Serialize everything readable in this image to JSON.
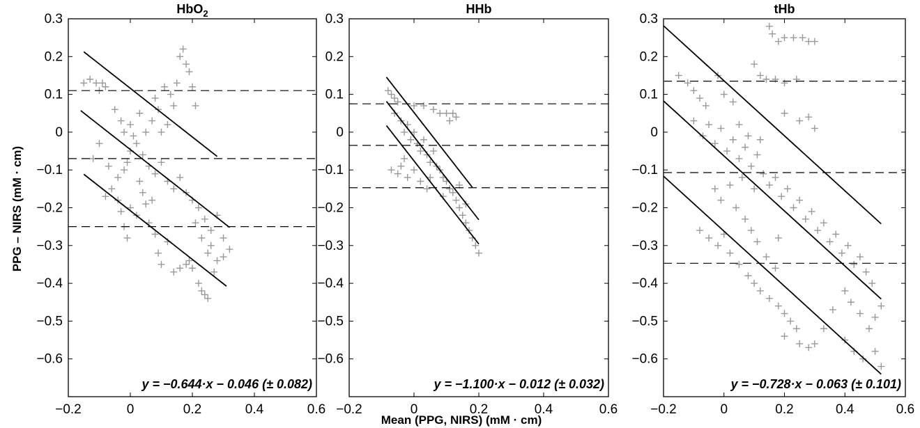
{
  "figure": {
    "ylabel": "PPG – NIRS (mM · cm)",
    "xlabel": "Mean (PPG, NIRS) (mM · cm)"
  },
  "chart_data": [
    {
      "type": "scatter",
      "title": "HbO",
      "title_subscript": "2",
      "xlim": [
        -0.2,
        0.6
      ],
      "ylim": [
        -0.7,
        0.3
      ],
      "x_ticks": [
        -0.2,
        0,
        0.2,
        0.4,
        0.6
      ],
      "x_tick_labels": [
        "−0.2",
        "0",
        "0.2",
        "0.4",
        "0.6"
      ],
      "y_ticks": [
        0.3,
        0.2,
        0.1,
        0,
        -0.1,
        -0.2,
        -0.3,
        -0.4,
        -0.5,
        -0.6
      ],
      "y_tick_labels": [
        "0.3",
        "0.2",
        "0.1",
        "0",
        "−0.1",
        "−0.2",
        "−0.3",
        "−0.4",
        "−0.5",
        "−0.6"
      ],
      "grid": false,
      "marker": "+",
      "marker_color": "#999999",
      "equation": "y = −0.644·x − 0.046 (± 0.082)",
      "dashed_hlines": [
        0.11,
        -0.07,
        -0.25
      ],
      "regression": {
        "slope": -0.644,
        "intercept": -0.046,
        "x_range": [
          -0.16,
          0.32
        ]
      },
      "limit_lines": [
        {
          "slope": -0.644,
          "intercept": 0.116,
          "x_range": [
            -0.15,
            0.28
          ]
        },
        {
          "slope": -0.644,
          "intercept": -0.208,
          "x_range": [
            -0.15,
            0.31
          ]
        }
      ],
      "points": [
        [
          -0.15,
          0.13
        ],
        [
          -0.13,
          0.14
        ],
        [
          -0.11,
          0.13
        ],
        [
          -0.09,
          0.13
        ],
        [
          -0.08,
          0.12
        ],
        [
          -0.1,
          0.11
        ],
        [
          -0.05,
          0.06
        ],
        [
          -0.03,
          0.03
        ],
        [
          -0.02,
          0.0
        ],
        [
          0.0,
          0.02
        ],
        [
          0.01,
          -0.01
        ],
        [
          0.03,
          0.05
        ],
        [
          0.05,
          0.0
        ],
        [
          0.07,
          0.03
        ],
        [
          0.09,
          0.06
        ],
        [
          0.1,
          0.0
        ],
        [
          0.12,
          0.02
        ],
        [
          0.14,
          0.07
        ],
        [
          0.15,
          0.13
        ],
        [
          0.16,
          0.2
        ],
        [
          0.17,
          0.22
        ],
        [
          0.18,
          0.18
        ],
        [
          0.19,
          0.16
        ],
        [
          0.2,
          0.12
        ],
        [
          0.21,
          0.07
        ],
        [
          -0.08,
          -0.17
        ],
        [
          -0.06,
          -0.15
        ],
        [
          -0.04,
          -0.12
        ],
        [
          -0.02,
          -0.1
        ],
        [
          -0.01,
          -0.08
        ],
        [
          0.0,
          -0.05
        ],
        [
          0.02,
          -0.03
        ],
        [
          0.04,
          -0.06
        ],
        [
          0.06,
          -0.09
        ],
        [
          0.08,
          -0.11
        ],
        [
          0.1,
          -0.08
        ],
        [
          0.12,
          -0.13
        ],
        [
          0.14,
          -0.15
        ],
        [
          0.16,
          -0.12
        ],
        [
          0.18,
          -0.16
        ],
        [
          0.2,
          -0.18
        ],
        [
          0.22,
          -0.2
        ],
        [
          0.24,
          -0.23
        ],
        [
          0.26,
          -0.26
        ],
        [
          0.28,
          -0.22
        ],
        [
          0.3,
          -0.28
        ],
        [
          0.32,
          -0.31
        ],
        [
          0.3,
          -0.33
        ],
        [
          0.26,
          -0.3
        ],
        [
          -0.04,
          -0.18
        ],
        [
          -0.03,
          -0.21
        ],
        [
          -0.02,
          -0.25
        ],
        [
          -0.01,
          -0.28
        ],
        [
          0.0,
          -0.2
        ],
        [
          0.02,
          -0.22
        ],
        [
          0.05,
          -0.19
        ],
        [
          0.06,
          -0.24
        ],
        [
          0.08,
          -0.27
        ],
        [
          0.09,
          -0.32
        ],
        [
          0.1,
          -0.35
        ],
        [
          0.12,
          -0.29
        ],
        [
          0.14,
          -0.37
        ],
        [
          0.16,
          -0.36
        ],
        [
          0.18,
          -0.35
        ],
        [
          0.2,
          -0.36
        ],
        [
          0.22,
          -0.4
        ],
        [
          0.24,
          -0.43
        ],
        [
          0.23,
          -0.42
        ],
        [
          0.25,
          -0.44
        ],
        [
          0.19,
          -0.34
        ],
        [
          0.21,
          -0.24
        ],
        [
          0.23,
          -0.28
        ],
        [
          0.25,
          -0.32
        ],
        [
          0.27,
          -0.37
        ],
        [
          0.28,
          -0.34
        ],
        [
          0.11,
          0.12
        ],
        [
          0.13,
          0.1
        ],
        [
          0.08,
          0.09
        ],
        [
          -0.12,
          -0.07
        ],
        [
          -0.1,
          -0.03
        ],
        [
          -0.07,
          -0.09
        ],
        [
          0.03,
          -0.13
        ],
        [
          0.04,
          -0.16
        ],
        [
          0.07,
          -0.18
        ]
      ]
    },
    {
      "type": "scatter",
      "title": "HHb",
      "xlim": [
        -0.2,
        0.6
      ],
      "ylim": [
        -0.7,
        0.3
      ],
      "x_ticks": [
        -0.2,
        0,
        0.2,
        0.4,
        0.6
      ],
      "x_tick_labels": [
        "−0.2",
        "0",
        "0.2",
        "0.4",
        "0.6"
      ],
      "y_ticks": [
        0.3,
        0.2,
        0.1,
        0,
        -0.1,
        -0.2,
        -0.3,
        -0.4,
        -0.5,
        -0.6
      ],
      "y_tick_labels": [
        "0.3",
        "0.2",
        "0.1",
        "0",
        "−0.1",
        "−0.2",
        "−0.3",
        "−0.4",
        "−0.5",
        "−0.6"
      ],
      "grid": false,
      "marker": "+",
      "marker_color": "#999999",
      "equation": "y = −1.100·x − 0.012 (± 0.032)",
      "dashed_hlines": [
        0.075,
        -0.035,
        -0.147
      ],
      "regression": {
        "slope": -1.1,
        "intercept": -0.012,
        "x_range": [
          -0.085,
          0.2
        ]
      },
      "limit_lines": [
        {
          "slope": -1.1,
          "intercept": 0.052,
          "x_range": [
            -0.085,
            0.18
          ]
        },
        {
          "slope": -1.1,
          "intercept": -0.076,
          "x_range": [
            -0.085,
            0.2
          ]
        }
      ],
      "points": [
        [
          -0.08,
          0.11
        ],
        [
          -0.07,
          0.1
        ],
        [
          -0.06,
          0.09
        ],
        [
          -0.05,
          0.08
        ],
        [
          -0.06,
          0.05
        ],
        [
          -0.04,
          0.03
        ],
        [
          -0.03,
          0.0
        ],
        [
          -0.02,
          0.02
        ],
        [
          -0.01,
          -0.02
        ],
        [
          0.0,
          0.0
        ],
        [
          0.01,
          -0.03
        ],
        [
          0.02,
          -0.05
        ],
        [
          0.03,
          -0.02
        ],
        [
          0.04,
          -0.06
        ],
        [
          0.05,
          -0.08
        ],
        [
          0.06,
          -0.05
        ],
        [
          0.07,
          -0.09
        ],
        [
          0.08,
          -0.1
        ],
        [
          0.09,
          -0.12
        ],
        [
          0.1,
          -0.13
        ],
        [
          0.11,
          -0.15
        ],
        [
          0.12,
          -0.16
        ],
        [
          0.13,
          -0.18
        ],
        [
          0.14,
          -0.2
        ],
        [
          0.15,
          -0.22
        ],
        [
          0.16,
          -0.24
        ],
        [
          0.17,
          -0.26
        ],
        [
          0.18,
          -0.28
        ],
        [
          0.19,
          -0.3
        ],
        [
          0.2,
          -0.32
        ],
        [
          0.0,
          0.07
        ],
        [
          0.03,
          0.07
        ],
        [
          0.06,
          0.06
        ],
        [
          0.08,
          0.05
        ],
        [
          0.1,
          0.05
        ],
        [
          0.12,
          0.05
        ],
        [
          0.13,
          0.04
        ],
        [
          0.11,
          0.03
        ],
        [
          -0.07,
          -0.1
        ],
        [
          -0.05,
          -0.11
        ],
        [
          -0.04,
          -0.09
        ],
        [
          -0.02,
          -0.12
        ],
        [
          0.0,
          -0.1
        ],
        [
          0.02,
          -0.13
        ],
        [
          0.04,
          -0.15
        ],
        [
          -0.03,
          -0.07
        ],
        [
          0.05,
          -0.12
        ],
        [
          0.09,
          -0.17
        ],
        [
          0.14,
          -0.14
        ],
        [
          0.16,
          -0.19
        ]
      ]
    },
    {
      "type": "scatter",
      "title": "tHb",
      "xlim": [
        -0.2,
        0.6
      ],
      "ylim": [
        -0.7,
        0.3
      ],
      "x_ticks": [
        -0.2,
        0,
        0.2,
        0.4,
        0.6
      ],
      "x_tick_labels": [
        "−0.2",
        "0",
        "0.2",
        "0.4",
        "0.6"
      ],
      "y_ticks": [
        0.3,
        0.2,
        0.1,
        0,
        -0.1,
        -0.2,
        -0.3,
        -0.4,
        -0.5,
        -0.6
      ],
      "y_tick_labels": [
        "0.3",
        "0.2",
        "0.1",
        "0",
        "−0.1",
        "−0.2",
        "−0.3",
        "−0.4",
        "−0.5",
        "−0.6"
      ],
      "grid": false,
      "marker": "+",
      "marker_color": "#999999",
      "equation": "y = −0.728·x − 0.063 (± 0.101)",
      "dashed_hlines": [
        0.135,
        -0.107,
        -0.347
      ],
      "regression": {
        "slope": -0.728,
        "intercept": -0.063,
        "x_range": [
          -0.2,
          0.52
        ]
      },
      "limit_lines": [
        {
          "slope": -0.728,
          "intercept": 0.136,
          "x_range": [
            -0.2,
            0.52
          ]
        },
        {
          "slope": -0.728,
          "intercept": -0.262,
          "x_range": [
            -0.2,
            0.52
          ]
        }
      ],
      "points": [
        [
          -0.15,
          0.15
        ],
        [
          -0.12,
          0.13
        ],
        [
          -0.1,
          0.11
        ],
        [
          -0.08,
          0.09
        ],
        [
          -0.06,
          0.07
        ],
        [
          -0.1,
          0.03
        ],
        [
          -0.07,
          -0.01
        ],
        [
          -0.05,
          0.02
        ],
        [
          -0.03,
          -0.03
        ],
        [
          -0.01,
          0.01
        ],
        [
          0.01,
          -0.05
        ],
        [
          0.03,
          -0.02
        ],
        [
          0.05,
          -0.07
        ],
        [
          0.07,
          -0.04
        ],
        [
          0.09,
          -0.09
        ],
        [
          0.11,
          -0.06
        ],
        [
          0.13,
          -0.11
        ],
        [
          0.15,
          -0.14
        ],
        [
          0.17,
          -0.12
        ],
        [
          0.19,
          -0.17
        ],
        [
          0.21,
          -0.15
        ],
        [
          0.23,
          -0.2
        ],
        [
          0.25,
          -0.18
        ],
        [
          0.27,
          -0.23
        ],
        [
          0.29,
          -0.21
        ],
        [
          0.31,
          -0.26
        ],
        [
          0.33,
          -0.24
        ],
        [
          0.35,
          -0.29
        ],
        [
          0.37,
          -0.27
        ],
        [
          0.39,
          -0.32
        ],
        [
          0.41,
          -0.3
        ],
        [
          0.43,
          -0.35
        ],
        [
          0.45,
          -0.33
        ],
        [
          0.47,
          -0.37
        ],
        [
          0.49,
          -0.4
        ],
        [
          0.15,
          0.28
        ],
        [
          0.16,
          0.26
        ],
        [
          0.18,
          0.24
        ],
        [
          0.2,
          0.25
        ],
        [
          0.23,
          0.25
        ],
        [
          0.26,
          0.25
        ],
        [
          0.28,
          0.24
        ],
        [
          0.3,
          0.24
        ],
        [
          0.1,
          0.18
        ],
        [
          0.12,
          0.15
        ],
        [
          0.14,
          0.14
        ],
        [
          0.17,
          0.14
        ],
        [
          0.2,
          0.13
        ],
        [
          0.24,
          0.14
        ],
        [
          0.2,
          0.05
        ],
        [
          0.25,
          0.03
        ],
        [
          0.28,
          0.04
        ],
        [
          0.3,
          0.01
        ],
        [
          -0.08,
          -0.26
        ],
        [
          -0.05,
          -0.28
        ],
        [
          -0.02,
          -0.3
        ],
        [
          0.0,
          -0.27
        ],
        [
          0.02,
          -0.32
        ],
        [
          0.05,
          -0.35
        ],
        [
          0.08,
          -0.38
        ],
        [
          0.1,
          -0.4
        ],
        [
          0.12,
          -0.42
        ],
        [
          0.15,
          -0.44
        ],
        [
          0.18,
          -0.46
        ],
        [
          0.2,
          -0.48
        ],
        [
          0.22,
          -0.5
        ],
        [
          0.24,
          -0.52
        ],
        [
          0.2,
          -0.54
        ],
        [
          0.25,
          -0.56
        ],
        [
          0.28,
          -0.57
        ],
        [
          0.3,
          -0.56
        ],
        [
          0.33,
          -0.52
        ],
        [
          0.36,
          -0.47
        ],
        [
          0.4,
          -0.42
        ],
        [
          0.42,
          -0.45
        ],
        [
          0.45,
          -0.48
        ],
        [
          0.48,
          -0.52
        ],
        [
          0.5,
          -0.58
        ],
        [
          0.52,
          -0.62
        ],
        [
          0.4,
          -0.55
        ],
        [
          0.43,
          -0.58
        ],
        [
          0.46,
          -0.6
        ],
        [
          0.5,
          -0.49
        ],
        [
          0.52,
          -0.46
        ],
        [
          -0.02,
          0.15
        ],
        [
          0.0,
          0.1
        ],
        [
          0.03,
          0.08
        ],
        [
          0.05,
          0.02
        ],
        [
          0.08,
          -0.01
        ],
        [
          0.12,
          -0.02
        ],
        [
          -0.03,
          -0.15
        ],
        [
          -0.01,
          -0.18
        ],
        [
          0.02,
          -0.14
        ],
        [
          0.04,
          -0.2
        ],
        [
          0.07,
          -0.23
        ],
        [
          0.09,
          -0.26
        ],
        [
          0.11,
          -0.29
        ],
        [
          0.14,
          -0.33
        ],
        [
          0.17,
          -0.36
        ],
        [
          0.06,
          -0.12
        ],
        [
          0.1,
          -0.15
        ],
        [
          0.18,
          -0.28
        ]
      ]
    }
  ]
}
